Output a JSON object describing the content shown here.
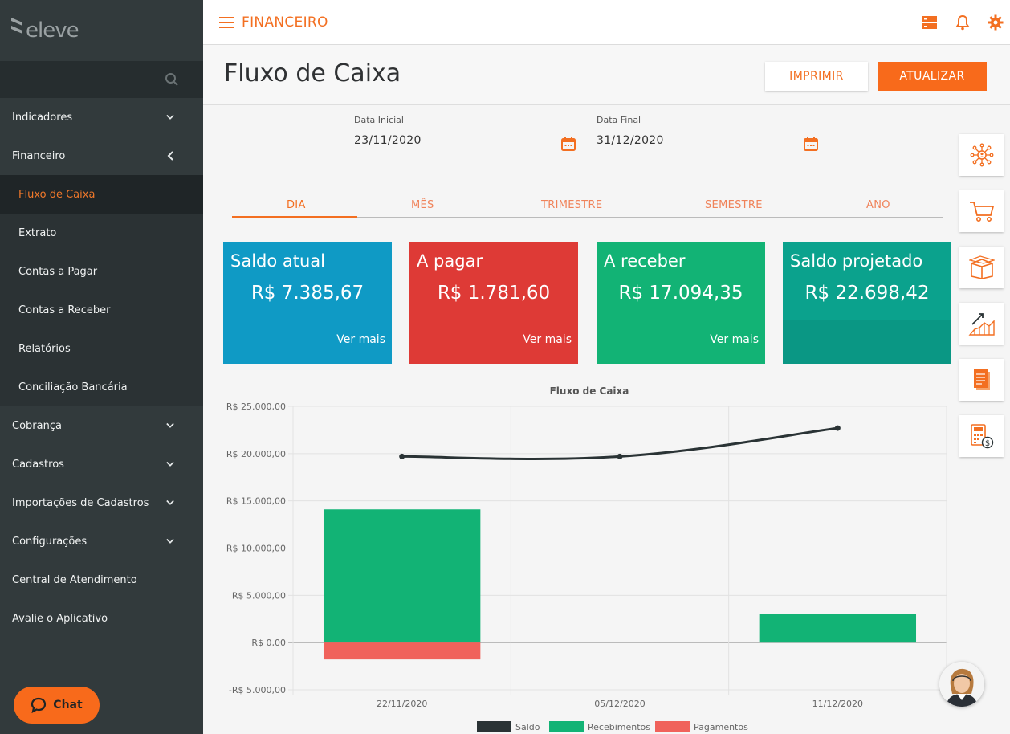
{
  "sidebar": {
    "logo": "eleve",
    "items": [
      {
        "label": "Indicadores"
      },
      {
        "label": "Financeiro"
      },
      {
        "label": "Cobrança"
      },
      {
        "label": "Cadastros"
      },
      {
        "label": "Importações de Cadastros"
      },
      {
        "label": "Configurações"
      },
      {
        "label": "Central de Atendimento"
      },
      {
        "label": "Avalie o Aplicativo"
      }
    ],
    "submenu": [
      {
        "label": "Fluxo de Caixa"
      },
      {
        "label": "Extrato"
      },
      {
        "label": "Contas a Pagar"
      },
      {
        "label": "Contas a Receber"
      },
      {
        "label": "Relatórios"
      },
      {
        "label": "Conciliação Bancária"
      }
    ],
    "chat_label": "Chat"
  },
  "topbar": {
    "title": "FINANCEIRO"
  },
  "page": {
    "title": "Fluxo de Caixa",
    "print_label": "IMPRIMIR",
    "update_label": "ATUALIZAR"
  },
  "filters": {
    "start_label": "Data Inicial",
    "start_value": "23/11/2020",
    "end_label": "Data Final",
    "end_value": "31/12/2020"
  },
  "tabs": [
    "DIA",
    "MÊS",
    "TRIMESTRE",
    "SEMESTRE",
    "ANO"
  ],
  "cards": [
    {
      "title": "Saldo atual",
      "value": "R$ 7.385,67",
      "more": "Ver mais",
      "color": "#0f9ac5",
      "foot": "#0f9ac5"
    },
    {
      "title": "A pagar",
      "value": "R$ 1.781,60",
      "more": "Ver mais",
      "color": "#de3a36",
      "foot": "#de3a36"
    },
    {
      "title": "A receber",
      "value": "R$ 17.094,35",
      "more": "Ver mais",
      "color": "#12b375",
      "foot": "#12b375"
    },
    {
      "title": "Saldo projetado",
      "value": "R$ 22.698,42",
      "more": "",
      "color": "#0ba28d",
      "foot": "#0a9784"
    }
  ],
  "quick_actions": [
    "network-icon",
    "cart-icon",
    "box-icon",
    "growth-chart-icon",
    "documents-icon",
    "calculator-money-icon"
  ],
  "colors": {
    "accent": "#f36f21",
    "sidebar": "#323a3c"
  },
  "chart_data": {
    "type": "bar",
    "title": "Fluxo de Caixa",
    "categories": [
      "22/11/2020",
      "05/12/2020",
      "11/12/2020"
    ],
    "ylim": [
      -5000,
      25000
    ],
    "yticks": [
      -5000,
      0,
      5000,
      10000,
      15000,
      20000,
      25000
    ],
    "ytick_labels": [
      "-R$ 5.000,00",
      "R$ 0,00",
      "R$ 5.000,00",
      "R$ 10.000,00",
      "R$ 15.000,00",
      "R$ 20.000,00",
      "R$ 25.000,00"
    ],
    "series": [
      {
        "name": "Saldo",
        "kind": "line",
        "color": "#2a3335",
        "values": [
          19700,
          19700,
          22700
        ]
      },
      {
        "name": "Recebimentos",
        "kind": "bar",
        "color": "#12b375",
        "values": [
          14100,
          0,
          3000
        ]
      },
      {
        "name": "Pagamentos",
        "kind": "bar",
        "color": "#f0625b",
        "values": [
          -1781.6,
          0,
          0
        ]
      }
    ],
    "grid": true,
    "legend": "bottom"
  }
}
